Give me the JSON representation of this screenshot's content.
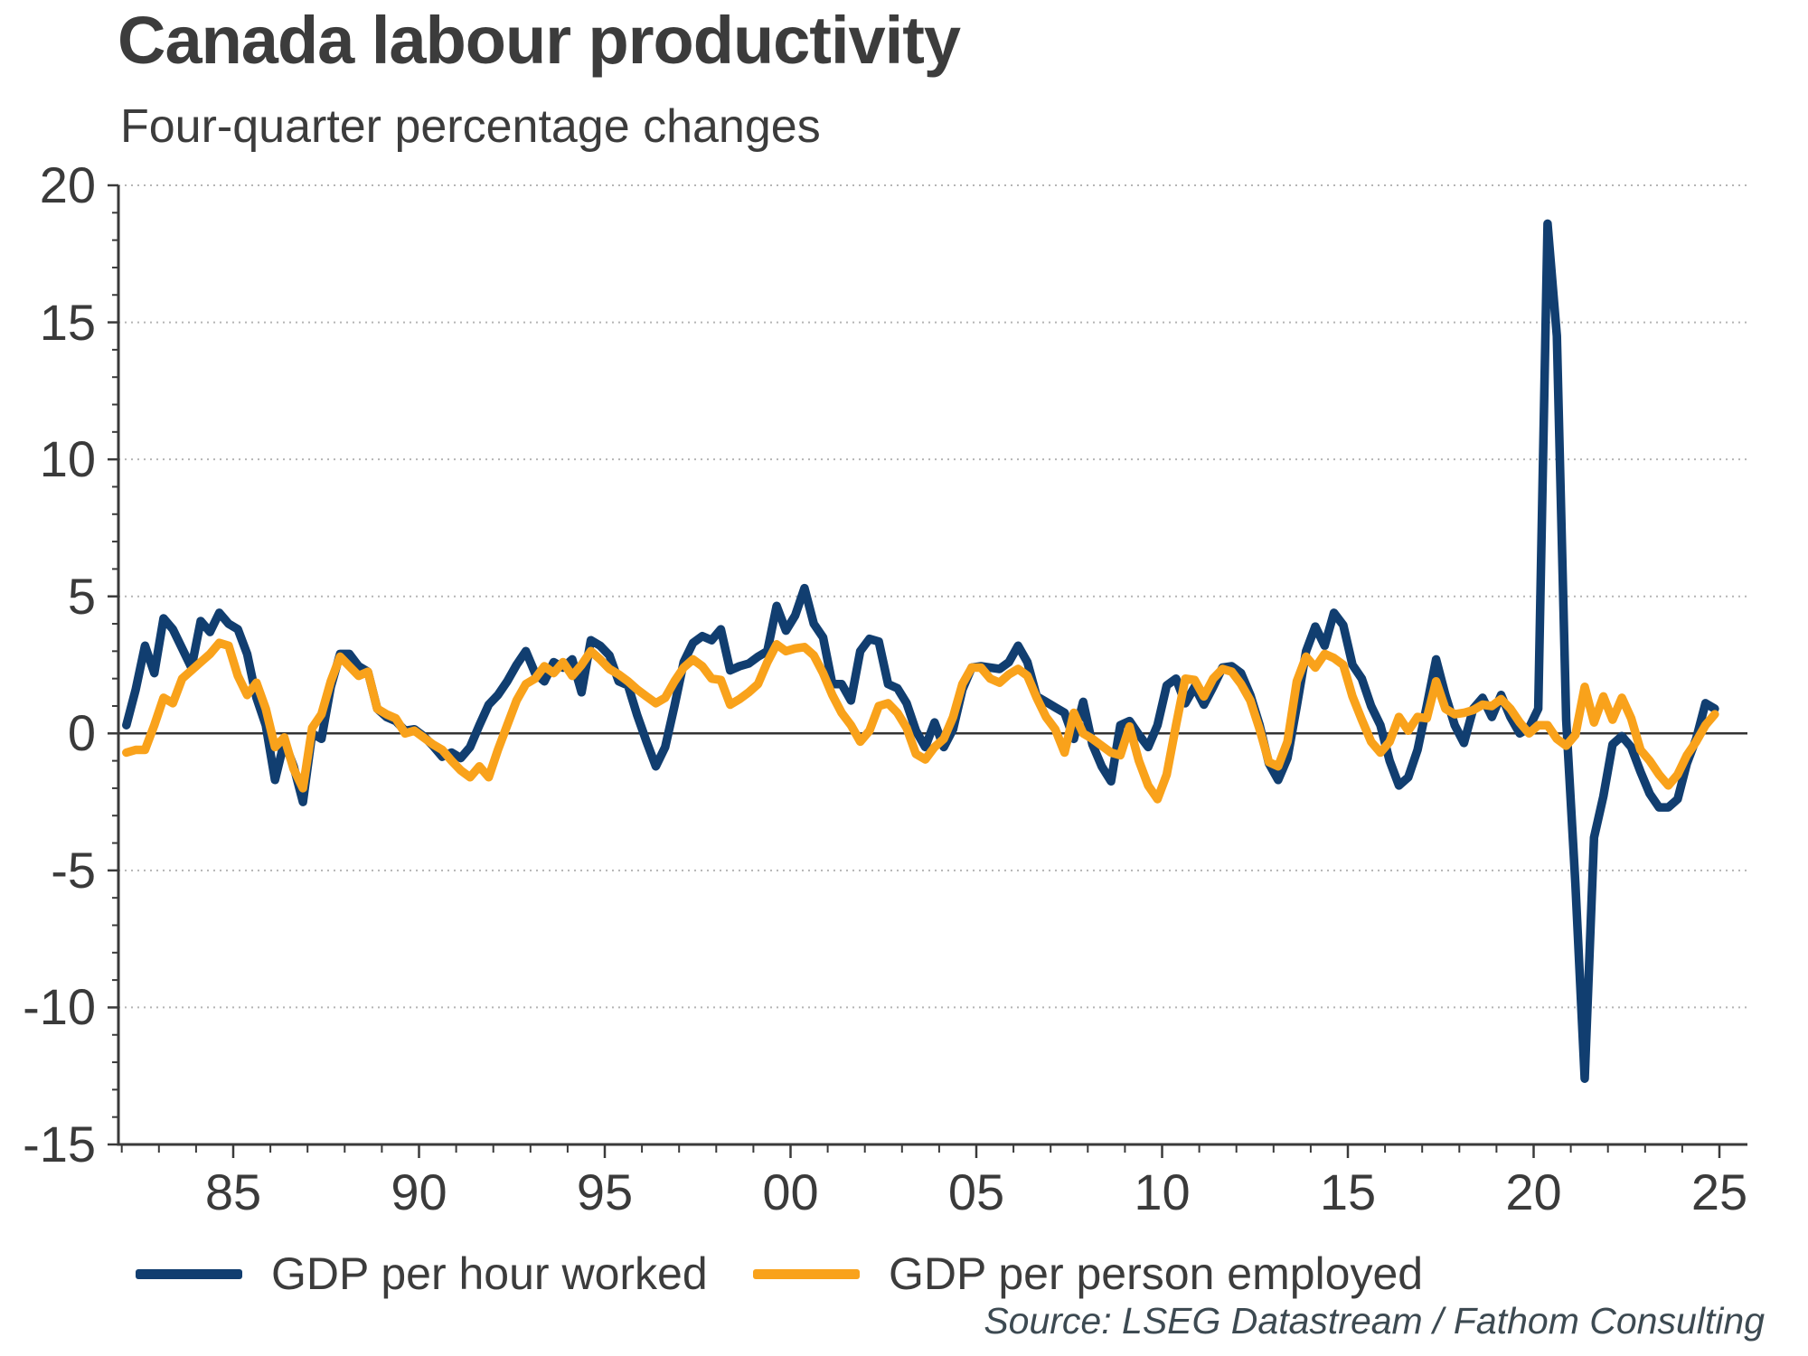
{
  "header": {
    "title": "Canada labour productivity",
    "subtitle": "Four-quarter percentage changes"
  },
  "source": "Source: LSEG Datastream / Fathom Consulting",
  "legend": {
    "items": [
      {
        "label": "GDP per hour worked",
        "color": "#113E70"
      },
      {
        "label": "GDP per person employed",
        "color": "#F9A21B"
      }
    ]
  },
  "colors": {
    "navy": "#113E70",
    "orange": "#F9A21B",
    "zero_line": "#333333",
    "axis": "#3a3a3a",
    "grid": "#b5b5b5",
    "text": "#3c3c3c",
    "source_text": "#3d4a52"
  },
  "chart_data": {
    "type": "line",
    "title": "Canada labour productivity",
    "subtitle": "Four-quarter percentage changes",
    "xlabel": "",
    "ylabel": "",
    "x_unit": "decimal year, quarterly observations (value centred on quarter)",
    "x_start": 1982.125,
    "x_step": 0.25,
    "xlim": [
      1982,
      2025.75
    ],
    "ylim": [
      -15,
      20
    ],
    "yticks": [
      20,
      15,
      10,
      5,
      0,
      -5,
      -10,
      -15
    ],
    "ytick_labels": [
      "20",
      "15",
      "10",
      "5",
      "0",
      "-5",
      "-10",
      "-15"
    ],
    "xticks": {
      "values": [
        1985,
        1990,
        1995,
        2000,
        2005,
        2010,
        2015,
        2020,
        2025
      ],
      "labels": [
        "85",
        "90",
        "95",
        "00",
        "05",
        "10",
        "15",
        "20",
        "25"
      ]
    },
    "minor_xtick_years": [
      1982,
      2025
    ],
    "grid": "horizontal dotted at major yticks, solid dark zero line",
    "legend_position": "bottom",
    "series": [
      {
        "name": "GDP per hour worked",
        "color": "#113E70",
        "values": [
          0.3,
          1.6,
          3.2,
          2.2,
          4.2,
          3.8,
          3.1,
          2.4,
          4.1,
          3.7,
          4.4,
          4.0,
          3.8,
          2.9,
          1.3,
          0.3,
          -1.7,
          -0.3,
          -1.2,
          -2.5,
          0.0,
          -0.2,
          1.7,
          2.9,
          2.9,
          2.45,
          2.25,
          0.9,
          0.6,
          0.45,
          0.1,
          0.15,
          -0.1,
          -0.45,
          -0.85,
          -0.7,
          -0.9,
          -0.5,
          0.3,
          1.05,
          1.4,
          1.9,
          2.5,
          3.0,
          2.2,
          1.9,
          2.6,
          2.4,
          2.7,
          1.5,
          3.4,
          3.2,
          2.85,
          1.9,
          1.75,
          0.65,
          -0.3,
          -1.2,
          -0.5,
          1.0,
          2.6,
          3.3,
          3.55,
          3.4,
          3.8,
          2.3,
          2.45,
          2.55,
          2.8,
          3.0,
          4.65,
          3.75,
          4.3,
          5.3,
          4.0,
          3.5,
          1.8,
          1.8,
          1.2,
          3.0,
          3.45,
          3.35,
          1.8,
          1.65,
          1.1,
          0.1,
          -0.5,
          0.4,
          -0.5,
          0.15,
          1.6,
          2.4,
          2.45,
          2.4,
          2.35,
          2.6,
          3.2,
          2.6,
          1.35,
          1.15,
          0.95,
          0.75,
          -0.2,
          1.15,
          -0.4,
          -1.2,
          -1.75,
          0.3,
          0.45,
          -0.05,
          -0.5,
          0.3,
          1.75,
          2.0,
          1.1,
          1.7,
          1.05,
          1.7,
          2.4,
          2.45,
          2.2,
          1.4,
          0.3,
          -1.1,
          -1.7,
          -0.9,
          1.0,
          3.0,
          3.9,
          3.2,
          4.4,
          3.95,
          2.5,
          2.0,
          1.0,
          0.3,
          -1.0,
          -1.9,
          -1.6,
          -0.6,
          1.0,
          2.7,
          1.4,
          0.3,
          -0.35,
          0.9,
          1.3,
          0.6,
          1.4,
          0.6,
          0.0,
          0.2,
          0.9,
          18.6,
          14.5,
          0.5,
          -5.5,
          -12.6,
          -3.8,
          -2.3,
          -0.4,
          -0.1,
          -0.5,
          -1.4,
          -2.2,
          -2.7,
          -2.7,
          -2.4,
          -1.1,
          -0.2,
          1.1,
          0.9
        ]
      },
      {
        "name": "GDP per person employed",
        "color": "#F9A21B",
        "values": [
          -0.7,
          -0.6,
          -0.6,
          0.3,
          1.3,
          1.1,
          2.0,
          2.3,
          2.6,
          2.9,
          3.3,
          3.2,
          2.1,
          1.4,
          1.85,
          0.9,
          -0.5,
          -0.15,
          -1.3,
          -2.0,
          0.2,
          0.7,
          1.9,
          2.8,
          2.45,
          2.1,
          2.25,
          0.9,
          0.7,
          0.55,
          0.0,
          0.1,
          -0.15,
          -0.4,
          -0.6,
          -1.0,
          -1.35,
          -1.6,
          -1.2,
          -1.6,
          -0.6,
          0.3,
          1.2,
          1.8,
          2.0,
          2.45,
          2.2,
          2.6,
          2.1,
          2.5,
          3.0,
          2.7,
          2.35,
          2.15,
          1.9,
          1.6,
          1.35,
          1.1,
          1.3,
          1.9,
          2.4,
          2.7,
          2.45,
          2.0,
          1.95,
          1.05,
          1.25,
          1.5,
          1.8,
          2.6,
          3.25,
          3.0,
          3.1,
          3.15,
          2.85,
          2.2,
          1.4,
          0.75,
          0.3,
          -0.3,
          0.1,
          1.0,
          1.1,
          0.75,
          0.2,
          -0.75,
          -0.95,
          -0.5,
          -0.2,
          0.6,
          1.8,
          2.4,
          2.4,
          2.0,
          1.85,
          2.15,
          2.35,
          2.1,
          1.3,
          0.6,
          0.15,
          -0.7,
          0.75,
          0.0,
          -0.2,
          -0.45,
          -0.7,
          -0.8,
          0.25,
          -1.0,
          -1.9,
          -2.4,
          -1.5,
          0.3,
          2.0,
          1.95,
          1.35,
          2.0,
          2.35,
          2.25,
          1.8,
          1.2,
          0.15,
          -1.05,
          -1.2,
          -0.3,
          1.9,
          2.8,
          2.4,
          2.9,
          2.75,
          2.5,
          1.35,
          0.5,
          -0.3,
          -0.7,
          -0.3,
          0.6,
          0.1,
          0.6,
          0.55,
          1.9,
          0.9,
          0.7,
          0.75,
          0.85,
          1.05,
          1.0,
          1.25,
          0.9,
          0.4,
          0.0,
          0.3,
          0.3,
          -0.2,
          -0.45,
          -0.05,
          1.7,
          0.4,
          1.35,
          0.5,
          1.3,
          0.55,
          -0.6,
          -1.0,
          -1.5,
          -1.9,
          -1.5,
          -0.8,
          -0.3,
          0.3,
          0.7
        ]
      }
    ]
  }
}
